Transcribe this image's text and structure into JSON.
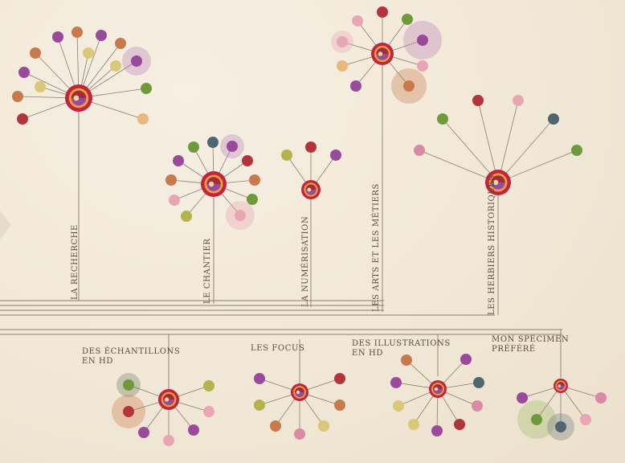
{
  "colors": {
    "line": "#8c7c6c",
    "red": "#c2243f",
    "orange": "#eba23a",
    "purple": "#9a4a9a",
    "wine": "#a32b3c"
  },
  "categories": {
    "top": [
      {
        "id": "recherche",
        "label": "LA RECHERCHE"
      },
      {
        "id": "chantier",
        "label": "LE CHANTIER"
      },
      {
        "id": "numerisation",
        "label": "LA NUMÉRISATION"
      },
      {
        "id": "arts",
        "label": "LES ARTS ET LES MÉTIERS"
      },
      {
        "id": "herbiers",
        "label": "LES HERBIERS HISTORIQUES"
      }
    ],
    "bottom": [
      {
        "id": "echantillons",
        "label": "DES ÉCHANTILLONS\nEN HD"
      },
      {
        "id": "focus",
        "label": "LES FOCUS"
      },
      {
        "id": "illustrations",
        "label": "DES ILLUSTRATIONS\nEN HD"
      },
      {
        "id": "specimen",
        "label": "MON SPÉCIMEN\nPRÉFÉRÉ"
      }
    ]
  }
}
